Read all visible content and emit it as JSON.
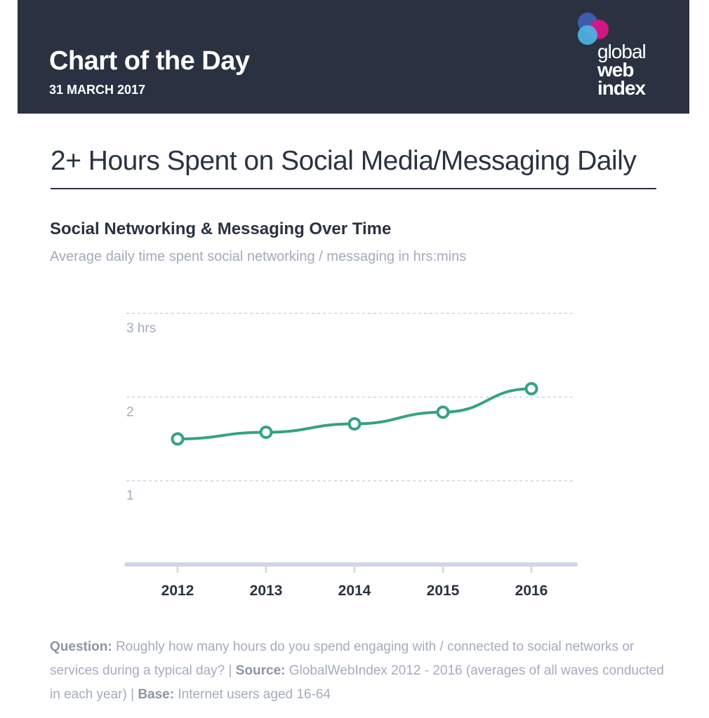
{
  "header": {
    "title": "Chart of the Day",
    "date": "31 MARCH 2017",
    "logo": {
      "line1": "global",
      "line2": "web",
      "line3": "index"
    }
  },
  "main_title": "2+ Hours Spent on Social Media/Messaging Daily",
  "chart_data": {
    "type": "line",
    "title": "Social Networking & Messaging Over Time",
    "subtitle": "Average daily time spent social networking / messaging in hrs:mins",
    "categories": [
      "2012",
      "2013",
      "2014",
      "2015",
      "2016"
    ],
    "series": [
      {
        "values": [
          1.5,
          1.58,
          1.68,
          1.82,
          2.1
        ]
      }
    ],
    "y_ticks": [
      {
        "value": 1,
        "label": "1"
      },
      {
        "value": 2,
        "label": "2"
      },
      {
        "value": 3,
        "label": "3 hrs"
      }
    ],
    "ylim": [
      0,
      3
    ],
    "grid": true,
    "colors": {
      "line": "#35a283",
      "grid": "#d0d4de",
      "axis": "#cfd5e6",
      "tick_label": "#a4abbd",
      "category_label": "#2a3241"
    }
  },
  "footnote": {
    "question_label": "Question:",
    "question_text": " Roughly how many hours do you spend engaging with / connected to social networks or services during a typical day? | ",
    "source_label": "Source:",
    "source_text": " GlobalWebIndex 2012 - 2016 (averages of all waves conducted in each year) | ",
    "base_label": "Base:",
    "base_text": " Internet users aged 16-64"
  },
  "colors": {
    "header_bg": "#2a3241",
    "logo_blue": "#3f5fb5",
    "logo_cyan": "#4fb6e8",
    "logo_magenta": "#e0148a"
  }
}
